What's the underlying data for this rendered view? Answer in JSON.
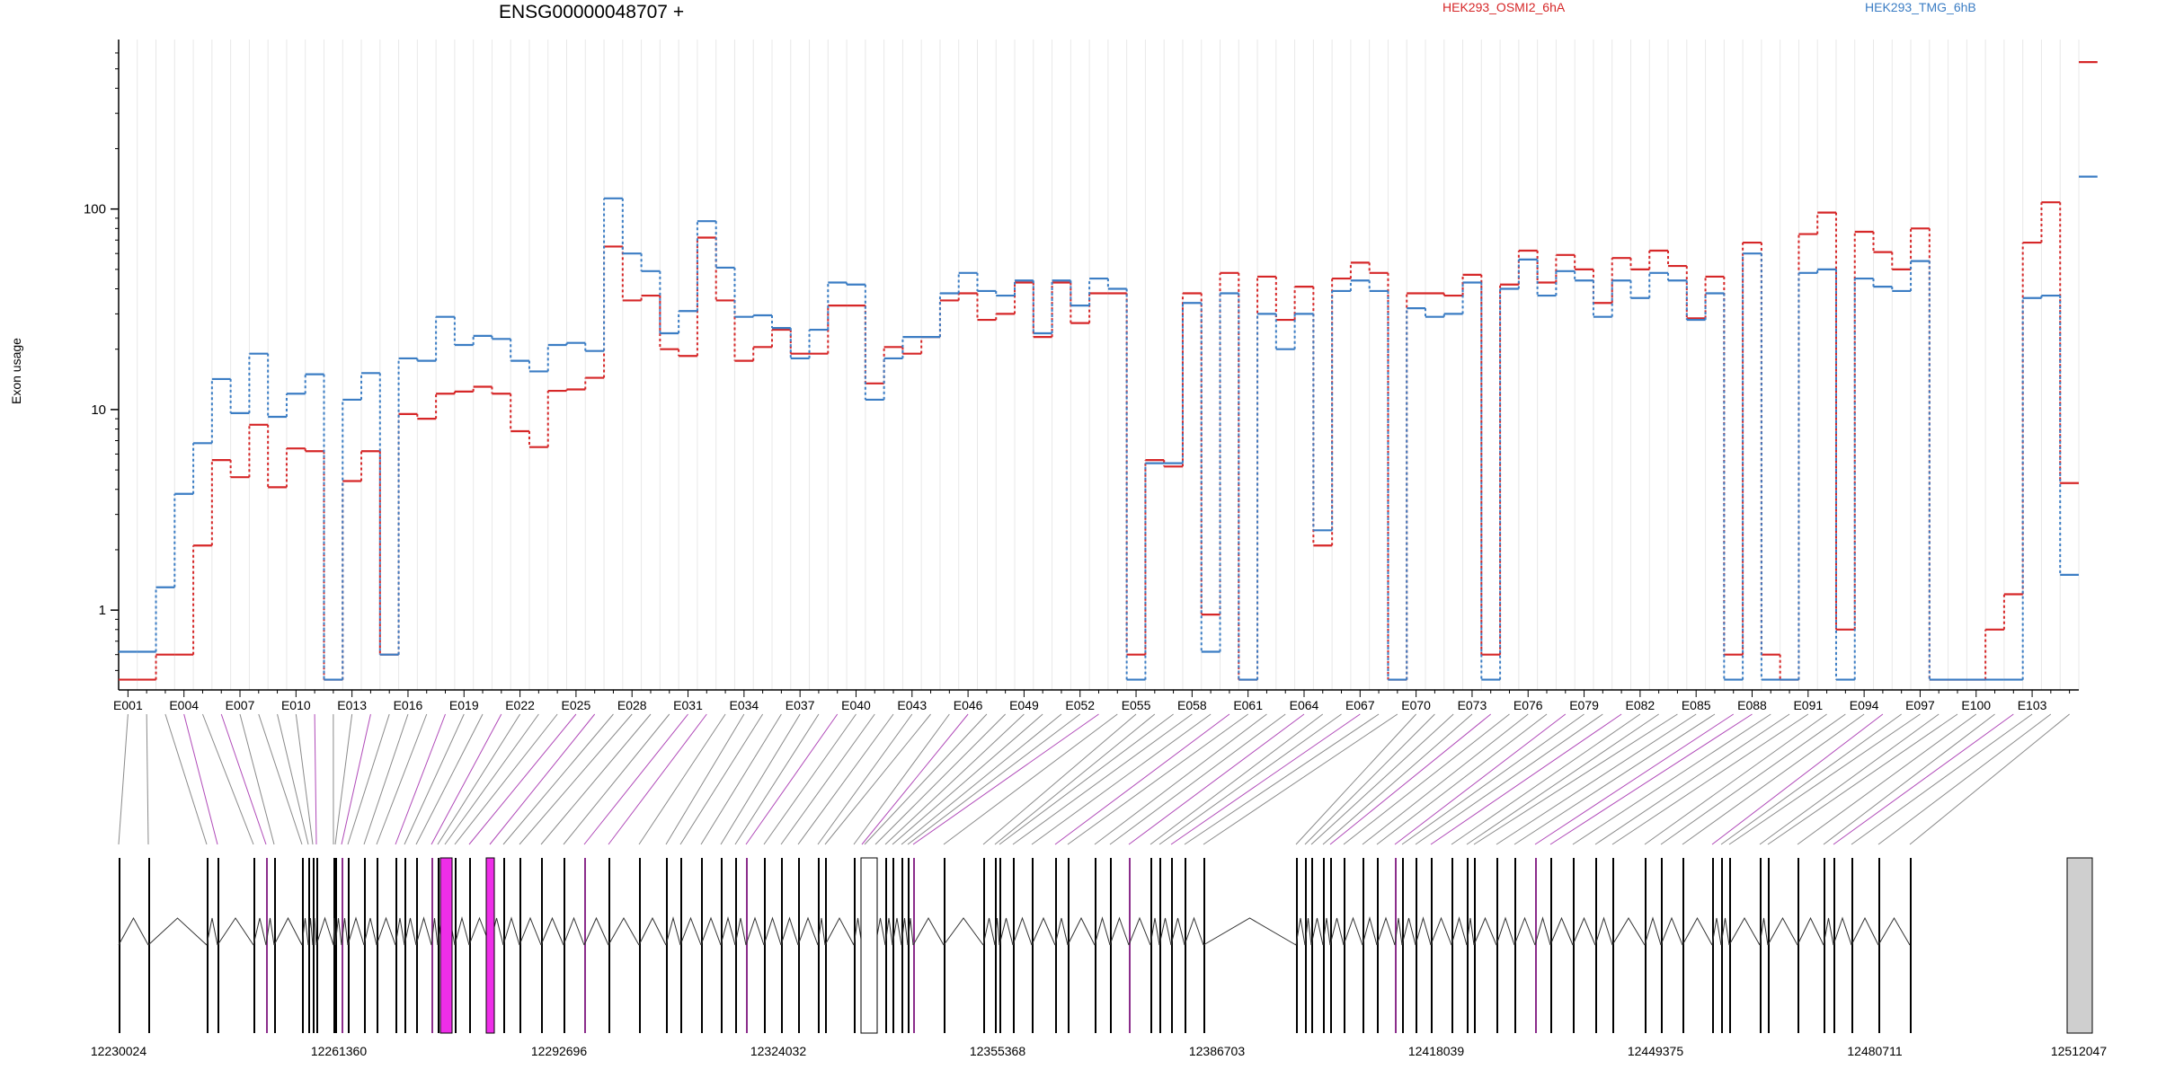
{
  "gene_title": "ENSG00000048707 +",
  "legend": [
    {
      "label": "HEK293_OSMI2_6hA",
      "color": "#d62728"
    },
    {
      "label": "HEK293_TMG_6hB",
      "color": "#3b7dc4"
    }
  ],
  "chart_data": {
    "type": "line",
    "ylabel": "Exon usage",
    "yscale": "log",
    "ylim": [
      0.4,
      700
    ],
    "yticks": [
      1,
      10,
      100
    ],
    "exon_labels": [
      "E001",
      "E004",
      "E007",
      "E010",
      "E013",
      "E016",
      "E019",
      "E022",
      "E025",
      "E028",
      "E031",
      "E034",
      "E037",
      "E040",
      "E043",
      "E046",
      "E049",
      "E052",
      "E055",
      "E058",
      "E061",
      "E064",
      "E067",
      "E070",
      "E073",
      "E076",
      "E079",
      "E082",
      "E085",
      "E088",
      "E091",
      "E094",
      "E097",
      "E100",
      "E103"
    ],
    "n_exons": 105,
    "series": [
      {
        "name": "HEK293_OSMI2_6hA",
        "color": "#d62728",
        "values": [
          0.45,
          0.45,
          0.6,
          0.6,
          2.1,
          5.6,
          4.6,
          8.4,
          4.1,
          6.4,
          6.2,
          0.45,
          4.4,
          6.2,
          0.6,
          9.5,
          9,
          12,
          12.3,
          13,
          12,
          7.8,
          6.5,
          12.4,
          12.6,
          14.4,
          65,
          35,
          37,
          20,
          18.5,
          72,
          35,
          17.5,
          20.5,
          25,
          19,
          19,
          33,
          33,
          13.5,
          20.5,
          19,
          23,
          35,
          38,
          28,
          30,
          43,
          23,
          43,
          27,
          38,
          38,
          0.6,
          5.6,
          5.2,
          38,
          0.95,
          48,
          0.45,
          46,
          28,
          41,
          2.1,
          45,
          54,
          48,
          0.45,
          38,
          38,
          37,
          47,
          0.6,
          42,
          62,
          43,
          59,
          50,
          34,
          57,
          50,
          62,
          52,
          28.5,
          46,
          0.6,
          68,
          0.6,
          0.45,
          75,
          96,
          0.8,
          77,
          61,
          50,
          80,
          0.45,
          0.45,
          0.45,
          0.8,
          1.2,
          68,
          108,
          4.3,
          540
        ]
      },
      {
        "name": "HEK293_TMG_6hB",
        "color": "#3b7dc4",
        "values": [
          0.62,
          0.62,
          1.3,
          3.8,
          6.8,
          14.2,
          9.6,
          19,
          9.2,
          12,
          15,
          0.45,
          11.2,
          15.2,
          0.6,
          18,
          17.5,
          29,
          21,
          23.3,
          22.5,
          17.5,
          15.5,
          21,
          21.5,
          19.6,
          113,
          60,
          49,
          24,
          31,
          87,
          51,
          29,
          29.5,
          25.5,
          18,
          25,
          43,
          42,
          11.2,
          18,
          23,
          23,
          38,
          48,
          39,
          37,
          44,
          24,
          44,
          33,
          45,
          40,
          0.45,
          5.4,
          5.4,
          34,
          0.62,
          38,
          0.45,
          30,
          20,
          30,
          2.5,
          39,
          44,
          39,
          0.45,
          32,
          29,
          30,
          43,
          0.45,
          40,
          56,
          37,
          49,
          44,
          29,
          44,
          36,
          48,
          44,
          28,
          38,
          0.45,
          60,
          0.45,
          0.45,
          48,
          50,
          0.45,
          45,
          41,
          39,
          55,
          0.45,
          0.45,
          0.45,
          0.45,
          0.45,
          36,
          37,
          1.5,
          145
        ]
      }
    ],
    "gene_model": {
      "coordinate_labels": [
        "12230024",
        "12261360",
        "12292696",
        "12324032",
        "12355368",
        "12386703",
        "12418039",
        "12449375",
        "12480711",
        "12512047"
      ],
      "start": 12230024,
      "end": 12512047
    }
  }
}
